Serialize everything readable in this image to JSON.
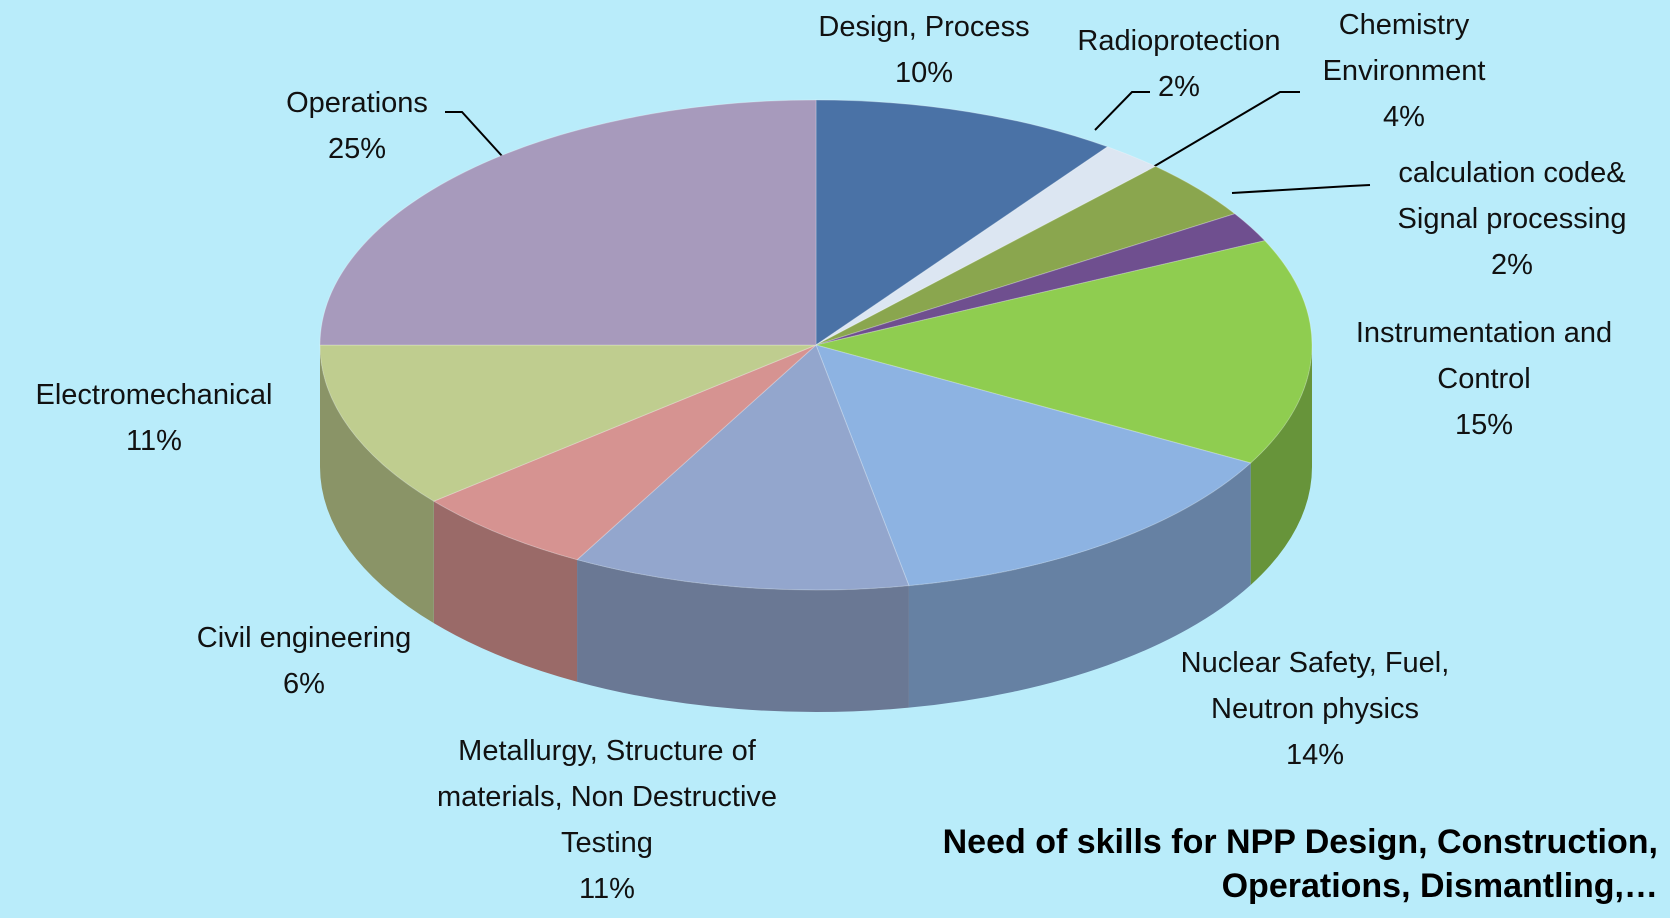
{
  "chart_data": {
    "type": "pie3d",
    "title": "Need of skills for NPP Design, Construction, Operations, Dismantling,…",
    "categories": [
      "Design, Process",
      "Radioprotection",
      "Chemistry Environment",
      "calculation code& Signal processing",
      "Instrumentation and Control",
      "Nuclear Safety, Fuel, Neutron physics",
      "Metallurgy, Structure of materials, Non Destructive Testing",
      "Civil engineering",
      "Electromechanical",
      "Operations"
    ],
    "values": [
      10,
      2,
      4,
      2,
      15,
      14,
      11,
      6,
      11,
      25
    ],
    "value_labels": [
      "10%",
      "2%",
      "4%",
      "2%",
      "15%",
      "14%",
      "11%",
      "6%",
      "11%",
      "25%"
    ],
    "colors": [
      "#4a72a6",
      "#dce6f2",
      "#8aa64e",
      "#6f4f8f",
      "#8fcd50",
      "#8db3e2",
      "#93a6cd",
      "#d69391",
      "#bfcd8f",
      "#a79abc"
    ]
  }
}
